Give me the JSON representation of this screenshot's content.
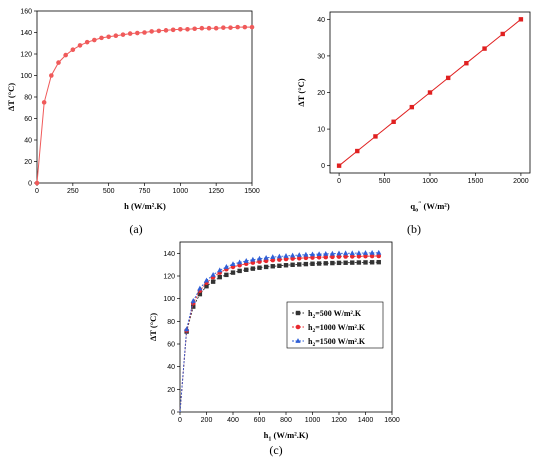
{
  "chart_data": [
    {
      "panel": "(a)",
      "type": "line",
      "xlabel": "h (W/m².K)",
      "ylabel": "ΔT (°C)",
      "xlim": [
        0,
        1500
      ],
      "ylim": [
        0,
        160
      ],
      "xticks": [
        0,
        250,
        500,
        750,
        1000,
        1250,
        1500
      ],
      "yticks": [
        0,
        20,
        40,
        60,
        80,
        100,
        120,
        140,
        160
      ],
      "color": "#f05a5a",
      "series": [
        {
          "x": [
            0,
            50,
            100,
            150,
            200,
            250,
            300,
            350,
            400,
            450,
            500,
            550,
            600,
            650,
            700,
            750,
            800,
            850,
            900,
            950,
            1000,
            1050,
            1100,
            1150,
            1200,
            1250,
            1300,
            1350,
            1400,
            1450,
            1500
          ],
          "y": [
            0,
            75,
            100,
            112,
            119,
            124,
            128,
            131,
            133,
            135,
            136,
            137,
            138,
            139,
            139.5,
            140,
            141,
            141.5,
            142,
            142.5,
            143,
            143,
            143.5,
            144,
            144,
            144,
            144.5,
            144.5,
            145,
            145,
            145
          ]
        }
      ]
    },
    {
      "panel": "(b)",
      "type": "line",
      "xlabel_main": "q",
      "xlabel_sub": "o",
      "xlabel_sup": "″",
      "xlabel_unit": " (W/m²)",
      "ylabel": "ΔT (°C)",
      "xlim": [
        -100,
        2100
      ],
      "ylim": [
        -2,
        42
      ],
      "xticks": [
        0,
        500,
        1000,
        1500,
        2000
      ],
      "yticks": [
        0,
        10,
        20,
        30,
        40
      ],
      "color": "#e02020",
      "series": [
        {
          "x": [
            0,
            200,
            400,
            600,
            800,
            1000,
            1200,
            1400,
            1600,
            1800,
            2000
          ],
          "y": [
            0,
            4,
            8,
            12,
            16,
            20,
            24,
            28,
            32,
            36,
            40
          ]
        }
      ]
    },
    {
      "panel": "(c)",
      "type": "line",
      "xlabel_main": "h",
      "xlabel_sub": "1",
      "xlabel_unit": " (W/m².K)",
      "ylabel": "ΔT (°C)",
      "xlim": [
        0,
        1600
      ],
      "ylim": [
        0,
        150
      ],
      "xticks": [
        0,
        200,
        400,
        600,
        800,
        1000,
        1200,
        1400,
        1600
      ],
      "yticks": [
        0,
        20,
        40,
        60,
        80,
        100,
        120,
        140
      ],
      "x": [
        0,
        50,
        100,
        150,
        200,
        250,
        300,
        350,
        400,
        450,
        500,
        550,
        600,
        650,
        700,
        750,
        800,
        850,
        900,
        950,
        1000,
        1050,
        1100,
        1150,
        1200,
        1250,
        1300,
        1350,
        1400,
        1450,
        1500
      ],
      "series": [
        {
          "name_main": "h",
          "name_sub": "2",
          "name_rest": "=500 W/m².K",
          "color": "#333333",
          "marker": "square",
          "y": [
            0,
            71,
            93,
            104,
            111,
            115,
            119,
            121,
            123,
            124.5,
            125.5,
            126.5,
            127.3,
            128,
            128.6,
            129,
            129.5,
            129.9,
            130.2,
            130.5,
            130.8,
            131,
            131.2,
            131.4,
            131.6,
            131.7,
            131.8,
            131.9,
            132,
            132.1,
            132.2
          ]
        },
        {
          "name_main": "h",
          "name_sub": "2",
          "name_rest": "=1000 W/m².K",
          "color": "#e8282e",
          "marker": "circle",
          "y": [
            0,
            72,
            96,
            107,
            114,
            119,
            123,
            126,
            128,
            129.5,
            130.8,
            131.8,
            132.7,
            133.4,
            134,
            134.5,
            135,
            135.4,
            135.7,
            136,
            136.3,
            136.5,
            136.7,
            136.9,
            137.1,
            137.2,
            137.3,
            137.4,
            137.5,
            137.6,
            137.7
          ]
        },
        {
          "name_main": "h",
          "name_sub": "2",
          "name_rest": "=1500 W/m².K",
          "color": "#2f5fd6",
          "marker": "triangle",
          "y": [
            0,
            73,
            98,
            109,
            116,
            121,
            125,
            128,
            130.5,
            132,
            133.3,
            134.4,
            135.3,
            136,
            136.7,
            137.2,
            137.7,
            138.1,
            138.5,
            138.8,
            139.1,
            139.3,
            139.5,
            139.7,
            139.9,
            140,
            140.1,
            140.2,
            140.3,
            140.4,
            140.5
          ]
        }
      ]
    }
  ]
}
